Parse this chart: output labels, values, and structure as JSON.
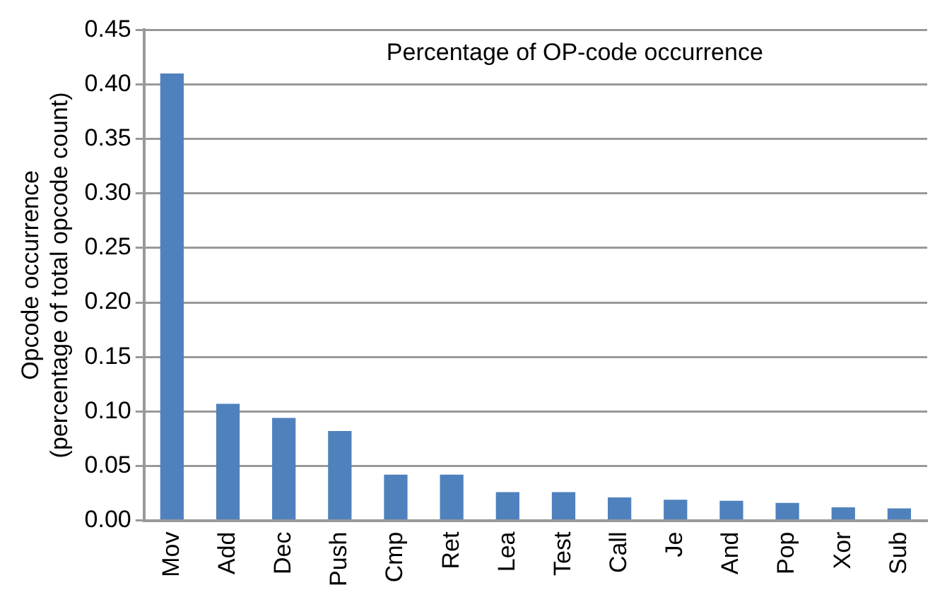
{
  "chart_data": {
    "type": "bar",
    "title": "Percentage of OP-code occurrence",
    "ylabel": "Opcode occurrence\n(percentage of total opcode count)",
    "categories": [
      "Mov",
      "Add",
      "Dec",
      "Push",
      "Cmp",
      "Ret",
      "Lea",
      "Test",
      "Call",
      "Je",
      "And",
      "Pop",
      "Xor",
      "Sub"
    ],
    "values": [
      0.41,
      0.107,
      0.094,
      0.082,
      0.042,
      0.042,
      0.026,
      0.026,
      0.021,
      0.019,
      0.018,
      0.016,
      0.012,
      0.011
    ],
    "color": "#4f81bd",
    "ylim": [
      0,
      0.45
    ],
    "yticks": [
      {
        "value": 0,
        "label": "0.00"
      },
      {
        "value": 0.05,
        "label": "0.05"
      },
      {
        "value": 0.1,
        "label": "0.10"
      },
      {
        "value": 0.15,
        "label": "0.15"
      },
      {
        "value": 0.2,
        "label": "0.20"
      },
      {
        "value": 0.25,
        "label": "0.25"
      },
      {
        "value": 0.3,
        "label": "0.30"
      },
      {
        "value": 0.35,
        "label": "0.35"
      },
      {
        "value": 0.4,
        "label": "0.40"
      },
      {
        "value": 0.45,
        "label": "0.45"
      }
    ],
    "grid": "y"
  }
}
